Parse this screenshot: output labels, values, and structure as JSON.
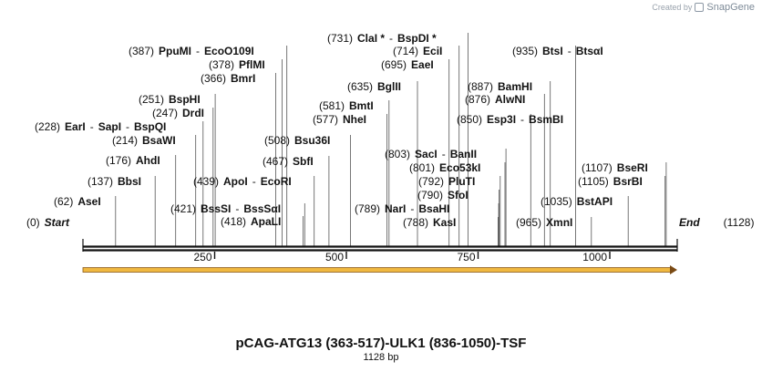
{
  "app": {
    "watermark_text": "Created by",
    "brand": "SnapGene",
    "brand_icon": "snapgene-logo-icon"
  },
  "map": {
    "title": "pCAG-ATG13 (363-517)-ULK1 (836-1050)-TSF",
    "length_label": "1128 bp",
    "length": 1128,
    "start_label": "Start",
    "end_label": "End",
    "ruler_ticks": [
      "250",
      "500",
      "750",
      "1000"
    ],
    "feature": {
      "name": "",
      "start": 0,
      "end": 1128,
      "color": "#f0b840",
      "direction": "forward"
    }
  },
  "sites": [
    {
      "pos": "(0)",
      "names": [
        {
          "text": "Start",
          "italic": true
        }
      ],
      "bp": 0,
      "side": "left"
    },
    {
      "pos": "(62)",
      "names": [
        {
          "text": "AseI"
        }
      ],
      "bp": 62,
      "side": "left"
    },
    {
      "pos": "(137)",
      "names": [
        {
          "text": "BbsI"
        }
      ],
      "bp": 137,
      "side": "left"
    },
    {
      "pos": "(176)",
      "names": [
        {
          "text": "AhdI"
        }
      ],
      "bp": 176,
      "side": "left"
    },
    {
      "pos": "(214)",
      "names": [
        {
          "text": "BsaWI"
        }
      ],
      "bp": 214,
      "side": "left"
    },
    {
      "pos": "(228)",
      "names": [
        {
          "text": "EarI"
        },
        {
          "text": "SapI"
        },
        {
          "text": "BspQI"
        }
      ],
      "bp": 228,
      "side": "left"
    },
    {
      "pos": "(247)",
      "names": [
        {
          "text": "DrdI"
        }
      ],
      "bp": 247,
      "side": "left"
    },
    {
      "pos": "(251)",
      "names": [
        {
          "text": "BspHI"
        }
      ],
      "bp": 251,
      "side": "left"
    },
    {
      "pos": "(366)",
      "names": [
        {
          "text": "BmrI"
        }
      ],
      "bp": 366,
      "side": "left"
    },
    {
      "pos": "(378)",
      "names": [
        {
          "text": "PflMI"
        }
      ],
      "bp": 378,
      "side": "left"
    },
    {
      "pos": "(387)",
      "names": [
        {
          "text": "PpuMI"
        },
        {
          "text": "EcoO109I"
        }
      ],
      "bp": 387,
      "side": "left"
    },
    {
      "pos": "(418)",
      "names": [
        {
          "text": "ApaLI"
        }
      ],
      "bp": 418,
      "side": "left"
    },
    {
      "pos": "(421)",
      "names": [
        {
          "text": "BssSI"
        },
        {
          "text": "BssSαI"
        }
      ],
      "bp": 421,
      "side": "left"
    },
    {
      "pos": "(439)",
      "names": [
        {
          "text": "ApoI"
        },
        {
          "text": "EcoRI"
        }
      ],
      "bp": 439,
      "side": "left"
    },
    {
      "pos": "(467)",
      "names": [
        {
          "text": "SbfI"
        }
      ],
      "bp": 467,
      "side": "left"
    },
    {
      "pos": "(508)",
      "names": [
        {
          "text": "Bsu36I"
        }
      ],
      "bp": 508,
      "side": "left"
    },
    {
      "pos": "(577)",
      "names": [
        {
          "text": "NheI"
        }
      ],
      "bp": 577,
      "side": "left"
    },
    {
      "pos": "(581)",
      "names": [
        {
          "text": "BmtI"
        }
      ],
      "bp": 581,
      "side": "left"
    },
    {
      "pos": "(635)",
      "names": [
        {
          "text": "BglII"
        }
      ],
      "bp": 635,
      "side": "left"
    },
    {
      "pos": "(695)",
      "names": [
        {
          "text": "EaeI"
        }
      ],
      "bp": 695,
      "side": "left"
    },
    {
      "pos": "(714)",
      "names": [
        {
          "text": "EciI"
        }
      ],
      "bp": 714,
      "side": "left"
    },
    {
      "pos": "(731)",
      "names": [
        {
          "text": "ClaI *"
        },
        {
          "text": "BspDI *"
        }
      ],
      "bp": 731,
      "side": "left"
    },
    {
      "pos": "(788)",
      "names": [
        {
          "text": "KasI"
        }
      ],
      "bp": 788,
      "side": "left"
    },
    {
      "pos": "(789)",
      "names": [
        {
          "text": "NarI"
        },
        {
          "text": "BsaHI"
        }
      ],
      "bp": 789,
      "side": "left"
    },
    {
      "pos": "(790)",
      "names": [
        {
          "text": "SfoI"
        }
      ],
      "bp": 790,
      "side": "left"
    },
    {
      "pos": "(792)",
      "names": [
        {
          "text": "PluTI"
        }
      ],
      "bp": 792,
      "side": "left"
    },
    {
      "pos": "(801)",
      "names": [
        {
          "text": "Eco53kI"
        }
      ],
      "bp": 801,
      "side": "left"
    },
    {
      "pos": "(803)",
      "names": [
        {
          "text": "SacI"
        },
        {
          "text": "BanII"
        }
      ],
      "bp": 803,
      "side": "left"
    },
    {
      "pos": "(850)",
      "names": [
        {
          "text": "Esp3I"
        },
        {
          "text": "BsmBI"
        }
      ],
      "bp": 850,
      "side": "left"
    },
    {
      "pos": "(876)",
      "names": [
        {
          "text": "AlwNI"
        }
      ],
      "bp": 876,
      "side": "left"
    },
    {
      "pos": "(887)",
      "names": [
        {
          "text": "BamHI"
        }
      ],
      "bp": 887,
      "side": "left"
    },
    {
      "pos": "(935)",
      "names": [
        {
          "text": "BtsI"
        },
        {
          "text": "BtsαI"
        }
      ],
      "bp": 935,
      "side": "left"
    },
    {
      "pos": "(965)",
      "names": [
        {
          "text": "XmnI"
        }
      ],
      "bp": 965,
      "side": "left"
    },
    {
      "pos": "(1035)",
      "names": [
        {
          "text": "BstAPI"
        }
      ],
      "bp": 1035,
      "side": "left"
    },
    {
      "pos": "(1105)",
      "names": [
        {
          "text": "BsrBI"
        }
      ],
      "bp": 1105,
      "side": "left"
    },
    {
      "pos": "(1107)",
      "names": [
        {
          "text": "BseRI"
        }
      ],
      "bp": 1107,
      "side": "left"
    },
    {
      "pos": "(1128)",
      "names": [
        {
          "text": "End",
          "italic": true
        }
      ],
      "bp": 1128,
      "side": "right"
    }
  ]
}
